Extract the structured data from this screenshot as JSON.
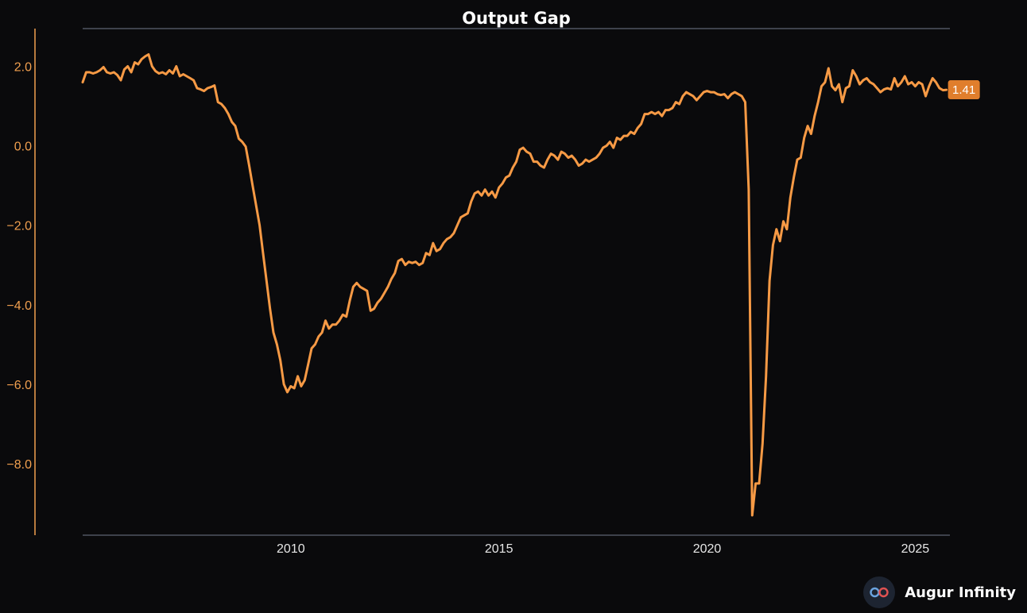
{
  "colors": {
    "background": "#0a0a0c",
    "line": "#f79a45",
    "label_bg": "#e07e2c",
    "y_axis": "#f2a04f",
    "x_tick": "#e6e6e6",
    "axis_line": "#4f5561"
  },
  "brand": {
    "name": "Augur Infinity",
    "icon": "infinity-logo-icon"
  },
  "chart_data": {
    "type": "line",
    "title": "Output Gap",
    "xlabel": "",
    "ylabel": "",
    "grid": false,
    "xlim": [
      "2005-01",
      "2025-11"
    ],
    "ylim": [
      -9.8,
      2.95
    ],
    "y_ticks": [
      "2.0",
      "0.0",
      "−2.0",
      "−4.0",
      "−6.0",
      "−8.0"
    ],
    "y_tick_values": [
      2,
      0,
      -2,
      -4,
      -6,
      -8
    ],
    "x_ticks": [
      "2010",
      "2015",
      "2020",
      "2025"
    ],
    "x_tick_values": [
      "2010-01",
      "2015-01",
      "2020-01",
      "2025-01"
    ],
    "last_value_label": "1.41",
    "series": [
      {
        "frequency": "monthly",
        "start": "2005-01",
        "values": [
          1.6,
          1.85,
          1.85,
          1.82,
          1.85,
          1.9,
          1.98,
          1.85,
          1.82,
          1.85,
          1.78,
          1.65,
          1.92,
          2.0,
          1.85,
          2.1,
          2.05,
          2.18,
          2.25,
          2.3,
          2.0,
          1.88,
          1.82,
          1.85,
          1.8,
          1.9,
          1.82,
          2.0,
          1.75,
          1.8,
          1.75,
          1.7,
          1.65,
          1.45,
          1.42,
          1.38,
          1.45,
          1.48,
          1.52,
          1.1,
          1.05,
          0.95,
          0.8,
          0.6,
          0.5,
          0.18,
          0.1,
          -0.02,
          -0.5,
          -1.0,
          -1.5,
          -2.0,
          -2.7,
          -3.4,
          -4.1,
          -4.7,
          -5.0,
          -5.4,
          -6.0,
          -6.2,
          -6.05,
          -6.1,
          -5.8,
          -6.05,
          -5.9,
          -5.5,
          -5.1,
          -5.0,
          -4.8,
          -4.7,
          -4.4,
          -4.6,
          -4.5,
          -4.5,
          -4.4,
          -4.25,
          -4.3,
          -3.9,
          -3.55,
          -3.45,
          -3.55,
          -3.6,
          -3.65,
          -4.15,
          -4.1,
          -3.95,
          -3.85,
          -3.7,
          -3.55,
          -3.35,
          -3.2,
          -2.9,
          -2.85,
          -3.0,
          -2.92,
          -2.95,
          -2.92,
          -3.0,
          -2.95,
          -2.7,
          -2.75,
          -2.45,
          -2.65,
          -2.6,
          -2.45,
          -2.35,
          -2.3,
          -2.2,
          -2.0,
          -1.8,
          -1.75,
          -1.7,
          -1.4,
          -1.2,
          -1.15,
          -1.25,
          -1.1,
          -1.25,
          -1.15,
          -1.3,
          -1.05,
          -0.95,
          -0.8,
          -0.75,
          -0.55,
          -0.4,
          -0.1,
          -0.05,
          -0.15,
          -0.2,
          -0.4,
          -0.4,
          -0.5,
          -0.55,
          -0.35,
          -0.2,
          -0.25,
          -0.35,
          -0.15,
          -0.2,
          -0.3,
          -0.25,
          -0.35,
          -0.5,
          -0.45,
          -0.35,
          -0.4,
          -0.35,
          -0.3,
          -0.2,
          -0.05,
          0.0,
          0.1,
          -0.05,
          0.2,
          0.15,
          0.25,
          0.25,
          0.35,
          0.3,
          0.45,
          0.55,
          0.8,
          0.8,
          0.85,
          0.8,
          0.85,
          0.75,
          0.9,
          0.9,
          0.95,
          1.1,
          1.05,
          1.25,
          1.35,
          1.3,
          1.25,
          1.15,
          1.25,
          1.35,
          1.38,
          1.35,
          1.35,
          1.3,
          1.28,
          1.3,
          1.2,
          1.3,
          1.35,
          1.3,
          1.25,
          1.1,
          -1.1,
          -9.3,
          -8.5,
          -8.5,
          -7.5,
          -5.8,
          -3.4,
          -2.5,
          -2.1,
          -2.4,
          -1.9,
          -2.1,
          -1.3,
          -0.8,
          -0.35,
          -0.3,
          0.2,
          0.5,
          0.3,
          0.75,
          1.1,
          1.5,
          1.6,
          1.95,
          1.5,
          1.4,
          1.55,
          1.1,
          1.45,
          1.5,
          1.9,
          1.75,
          1.55,
          1.65,
          1.7,
          1.6,
          1.55,
          1.45,
          1.35,
          1.42,
          1.45,
          1.42,
          1.7,
          1.5,
          1.6,
          1.75,
          1.55,
          1.6,
          1.5,
          1.6,
          1.55,
          1.25,
          1.5,
          1.7,
          1.6,
          1.45,
          1.4,
          1.41
        ]
      }
    ]
  }
}
